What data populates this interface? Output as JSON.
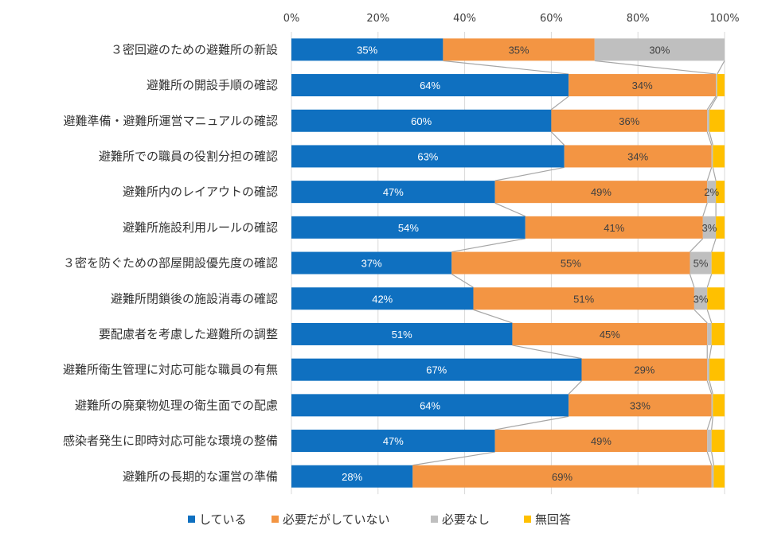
{
  "chart_data": {
    "type": "bar",
    "orientation": "horizontal",
    "stacked": "100%",
    "categories": [
      "３密回避のための避難所の新設",
      "避難所の開設手順の確認",
      "避難準備・避難所運営マニュアルの確認",
      "避難所での職員の役割分担の確認",
      "避難所内のレイアウトの確認",
      "避難所施設利用ルールの確認",
      "３密を防ぐための部屋開設優先度の確認",
      "避難所閉鎖後の施設消毒の確認",
      "要配慮者を考慮した避難所の調整",
      "避難所衛生管理に対応可能な職員の有無",
      "避難所の廃棄物処理の衛生面での配慮",
      "感染者発生に即時対応可能な環境の整備",
      "避難所の長期的な運営の準備"
    ],
    "series": [
      {
        "name": "している",
        "color": "#0f70c0",
        "values": [
          35,
          64,
          60,
          63,
          47,
          54,
          37,
          42,
          51,
          67,
          64,
          47,
          28
        ],
        "labels": [
          "35%",
          "64%",
          "60%",
          "63%",
          "47%",
          "54%",
          "37%",
          "42%",
          "51%",
          "67%",
          "64%",
          "47%",
          "28%"
        ]
      },
      {
        "name": "必要だがしていない",
        "color": "#f39543",
        "values": [
          35,
          34,
          36,
          34,
          49,
          41,
          55,
          51,
          45,
          29,
          33,
          49,
          69
        ],
        "labels": [
          "35%",
          "34%",
          "36%",
          "34%",
          "49%",
          "41%",
          "55%",
          "51%",
          "45%",
          "29%",
          "33%",
          "49%",
          "69%"
        ]
      },
      {
        "name": "必要なし",
        "color": "#bfbfbf",
        "values": [
          30,
          0.3,
          0.5,
          0.3,
          2,
          3,
          5,
          3,
          1,
          0.5,
          0.3,
          1,
          0.5
        ],
        "labels": [
          "30%",
          "",
          "",
          "",
          "2%",
          "3%",
          "5%",
          "3%",
          "",
          "",
          "",
          "",
          ""
        ]
      },
      {
        "name": "無回答",
        "color": "#ffc000",
        "values": [
          0,
          1.7,
          3.5,
          2.7,
          2,
          2,
          3,
          4,
          3,
          3.5,
          2.7,
          3,
          2.5
        ],
        "labels": [
          "",
          "",
          "",
          "",
          "",
          "",
          "",
          "",
          "",
          "",
          "",
          "",
          ""
        ]
      }
    ],
    "xlim": [
      0,
      100
    ],
    "xticks": [
      "0%",
      "20%",
      "40%",
      "60%",
      "80%",
      "100%"
    ],
    "series_lines": true,
    "grid": true,
    "legend_position": "bottom"
  }
}
